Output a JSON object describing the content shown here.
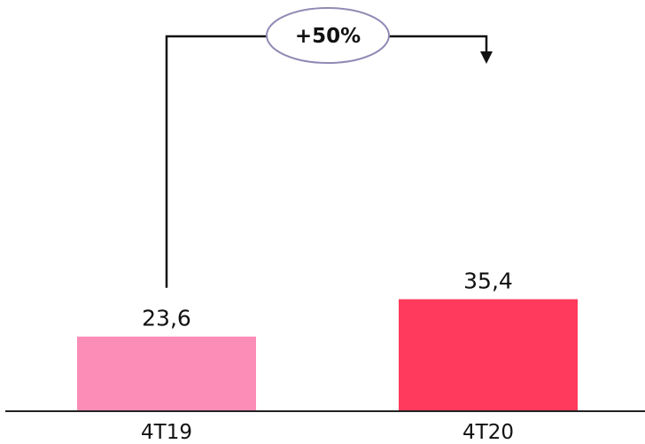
{
  "chart_data": {
    "type": "bar",
    "categories": [
      "4T19",
      "4T20"
    ],
    "values": [
      23.6,
      35.4
    ],
    "value_labels": [
      "23,6",
      "35,4"
    ],
    "bar_colors": [
      "#fc8db6",
      "#ff3a5c"
    ],
    "ylim": [
      0,
      40
    ],
    "grid": false,
    "legend": "none",
    "annotation": {
      "text": "+50%",
      "from": "4T19",
      "to": "4T20",
      "ellipse_stroke": "#8f8bb5"
    },
    "title": "",
    "xlabel": "",
    "ylabel": ""
  }
}
